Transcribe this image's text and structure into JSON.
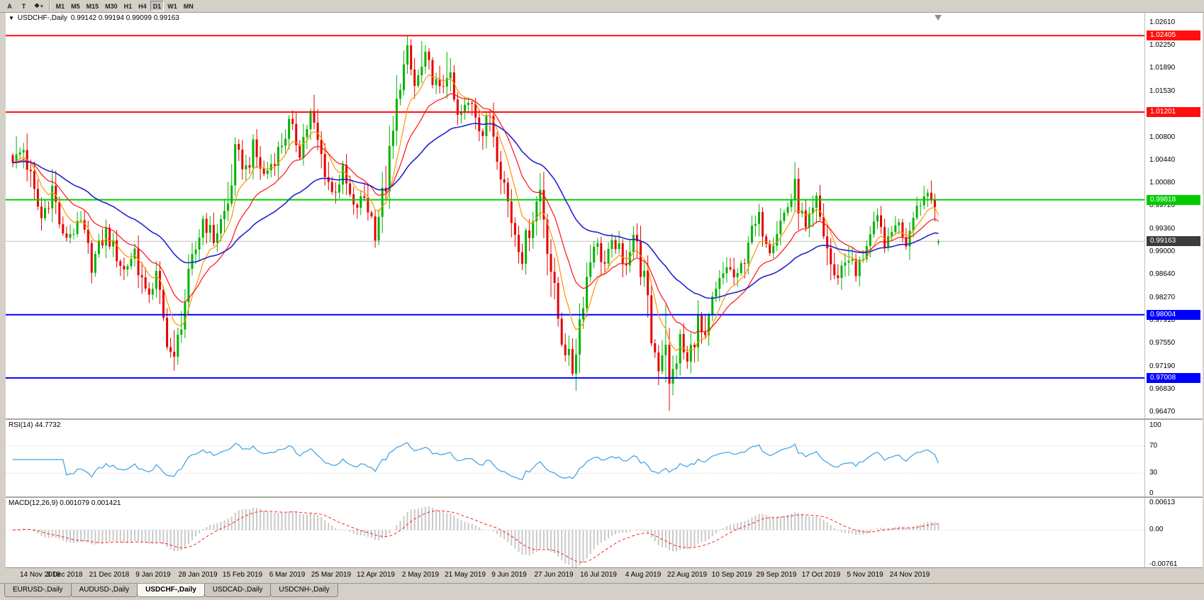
{
  "app": {
    "background": "#d4d0c8"
  },
  "toolbar": {
    "tool_buttons": [
      {
        "label": "A",
        "name": "arrow-tool"
      },
      {
        "label": "T",
        "name": "text-tool"
      }
    ],
    "shapes_button_label": "❖",
    "timeframes": [
      "M1",
      "M5",
      "M15",
      "M30",
      "H1",
      "H4",
      "D1",
      "W1",
      "MN"
    ],
    "active_timeframe": "D1"
  },
  "chart_data": {
    "type": "candlestick",
    "symbol_label": "USDCHF-,Daily",
    "ohlc_label": "0.99142 0.99194 0.99099 0.99163",
    "current_bar": {
      "open": 0.99142,
      "high": 0.99194,
      "low": 0.99099,
      "close": 0.99163
    },
    "bars_total": 259,
    "up_color": "#00b400",
    "down_color": "#e60000",
    "y_axis_ticks": [
      "1.02610",
      "1.02250",
      "1.01890",
      "1.01530",
      "1.00800",
      "1.00440",
      "1.00080",
      "0.99720",
      "0.99360",
      "0.99000",
      "0.98640",
      "0.98270",
      "0.97910",
      "0.97550",
      "0.97190",
      "0.96830",
      "0.96470"
    ],
    "x_axis_labels": [
      "14 Nov 2018",
      "3 Dec 2018",
      "21 Dec 2018",
      "9 Jan 2019",
      "28 Jan 2019",
      "15 Feb 2019",
      "6 Mar 2019",
      "25 Mar 2019",
      "12 Apr 2019",
      "2 May 2019",
      "21 May 2019",
      "9 Jun 2019",
      "27 Jun 2019",
      "16 Jul 2019",
      "4 Aug 2019",
      "22 Aug 2019",
      "10 Sep 2019",
      "29 Sep 2019",
      "17 Oct 2019",
      "5 Nov 2019",
      "24 Nov 2019"
    ],
    "close_anchors": [
      [
        0,
        1.004
      ],
      [
        3,
        1.0062
      ],
      [
        6,
        0.999
      ],
      [
        8,
        0.9952
      ],
      [
        11,
        1.0
      ],
      [
        14,
        0.9921
      ],
      [
        19,
        0.9942
      ],
      [
        22,
        0.988
      ],
      [
        26,
        0.993
      ],
      [
        31,
        0.987
      ],
      [
        34,
        0.9902
      ],
      [
        37,
        0.983
      ],
      [
        40,
        0.9856
      ],
      [
        42,
        0.979
      ],
      [
        45,
        0.9718
      ],
      [
        47,
        0.9795
      ],
      [
        50,
        0.988
      ],
      [
        53,
        0.9952
      ],
      [
        56,
        0.992
      ],
      [
        60,
        0.9975
      ],
      [
        62,
        1.0058
      ],
      [
        65,
        1.003
      ],
      [
        67,
        1.0062
      ],
      [
        70,
        1.002
      ],
      [
        74,
        1.0058
      ],
      [
        77,
        1.01
      ],
      [
        80,
        1.0062
      ],
      [
        83,
        1.0115
      ],
      [
        86,
        1.005
      ],
      [
        89,
        0.9992
      ],
      [
        92,
        1.0022
      ],
      [
        95,
        0.9966
      ],
      [
        98,
        0.9986
      ],
      [
        101,
        0.9936
      ],
      [
        104,
        1.001
      ],
      [
        106,
        1.0082
      ],
      [
        108,
        1.017
      ],
      [
        110,
        1.0208
      ],
      [
        112,
        1.016
      ],
      [
        115,
        1.0202
      ],
      [
        117,
        1.0178
      ],
      [
        119,
        1.0146
      ],
      [
        121,
        1.0188
      ],
      [
        124,
        1.011
      ],
      [
        128,
        1.014
      ],
      [
        131,
        1.0086
      ],
      [
        133,
        1.0118
      ],
      [
        136,
        1.0035
      ],
      [
        139,
        0.995
      ],
      [
        142,
        0.9896
      ],
      [
        145,
        0.9958
      ],
      [
        147,
        0.9998
      ],
      [
        149,
        0.992
      ],
      [
        151,
        0.983
      ],
      [
        153,
        0.9762
      ],
      [
        156,
        0.9716
      ],
      [
        159,
        0.983
      ],
      [
        162,
        0.9918
      ],
      [
        165,
        0.988
      ],
      [
        168,
        0.9918
      ],
      [
        170,
        0.9872
      ],
      [
        173,
        0.993
      ],
      [
        176,
        0.985
      ],
      [
        178,
        0.9762
      ],
      [
        180,
        0.9722
      ],
      [
        182,
        0.9768
      ],
      [
        183,
        0.9682
      ],
      [
        186,
        0.976
      ],
      [
        188,
        0.9722
      ],
      [
        191,
        0.979
      ],
      [
        193,
        0.9746
      ],
      [
        195,
        0.982
      ],
      [
        199,
        0.9878
      ],
      [
        202,
        0.985
      ],
      [
        205,
        0.992
      ],
      [
        208,
        0.995
      ],
      [
        211,
        0.991
      ],
      [
        215,
        0.996
      ],
      [
        218,
        0.9998
      ],
      [
        221,
        0.993
      ],
      [
        224,
        0.9975
      ],
      [
        227,
        0.9905
      ],
      [
        229,
        0.9856
      ],
      [
        233,
        0.9895
      ],
      [
        235,
        0.986
      ],
      [
        238,
        0.9915
      ],
      [
        241,
        0.9945
      ],
      [
        244,
        0.9906
      ],
      [
        246,
        0.995
      ],
      [
        249,
        0.992
      ],
      [
        251,
        0.9964
      ],
      [
        254,
        0.9988
      ],
      [
        256,
        1.0002
      ],
      [
        257,
        0.9978
      ],
      [
        258,
        0.99163
      ]
    ],
    "wick_overrides": [
      [
        1,
        "h",
        1.0082
      ],
      [
        45,
        "l",
        0.9712
      ],
      [
        83,
        "h",
        1.0126
      ],
      [
        110,
        "h",
        1.024
      ],
      [
        114,
        "h",
        1.0232
      ],
      [
        121,
        "h",
        1.0215
      ],
      [
        156,
        "l",
        0.9704
      ],
      [
        183,
        "l",
        0.9649
      ],
      [
        256,
        "h",
        1.0012
      ]
    ],
    "levels": [
      {
        "price": 1.02405,
        "label": "1.02405",
        "color": "#ff1010",
        "width": 2,
        "role": "resistance"
      },
      {
        "price": 1.01201,
        "label": "1.01201",
        "color": "#ff1010",
        "width": 2,
        "role": "resistance"
      },
      {
        "price": 0.99818,
        "label": "0.99818",
        "color": "#00cc00",
        "width": 2,
        "role": "pivot"
      },
      {
        "price": 0.99163,
        "label": "0.99163",
        "color": "#c0c0c0",
        "box": "#3c3c3c",
        "width": 1,
        "role": "current-price"
      },
      {
        "price": 0.98004,
        "label": "0.98004",
        "color": "#0000ff",
        "width": 2,
        "role": "support"
      },
      {
        "price": 0.97008,
        "label": "0.97008",
        "color": "#0000ff",
        "width": 2,
        "role": "support"
      }
    ],
    "moving_averages": [
      {
        "period": 8,
        "color": "#ff9500",
        "name": "fast-ma"
      },
      {
        "period": 18,
        "color": "#ff1010",
        "name": "medium-ma"
      },
      {
        "period": 45,
        "color": "#2222cc",
        "name": "slow-ma"
      }
    ],
    "indicators": [
      {
        "name": "RSI",
        "title": "RSI(14) 44.7732",
        "period": 14,
        "value": 44.7732,
        "color": "#3da0e0",
        "levels": [
          100,
          70,
          30,
          0
        ]
      },
      {
        "name": "MACD",
        "title": "MACD(12,26,9) 0.001079 0.001421",
        "fast": 12,
        "slow": 26,
        "signal": 9,
        "values": [
          0.001079,
          0.001421
        ],
        "histogram_color": "#c9c9c9",
        "signal_color": "#ff2020",
        "scale_labels": [
          "0.00613",
          "0.00",
          "-0.00761"
        ],
        "scale_values": [
          0.00613,
          0,
          -0.00761
        ]
      }
    ]
  },
  "bottom_tabs": [
    {
      "label": "EURUSD-,Daily",
      "active": false
    },
    {
      "label": "AUDUSD-,Daily",
      "active": false
    },
    {
      "label": "USDCHF-,Daily",
      "active": true
    },
    {
      "label": "USDCAD-,Daily",
      "active": false
    },
    {
      "label": "USDCNH-,Daily",
      "active": false
    }
  ]
}
